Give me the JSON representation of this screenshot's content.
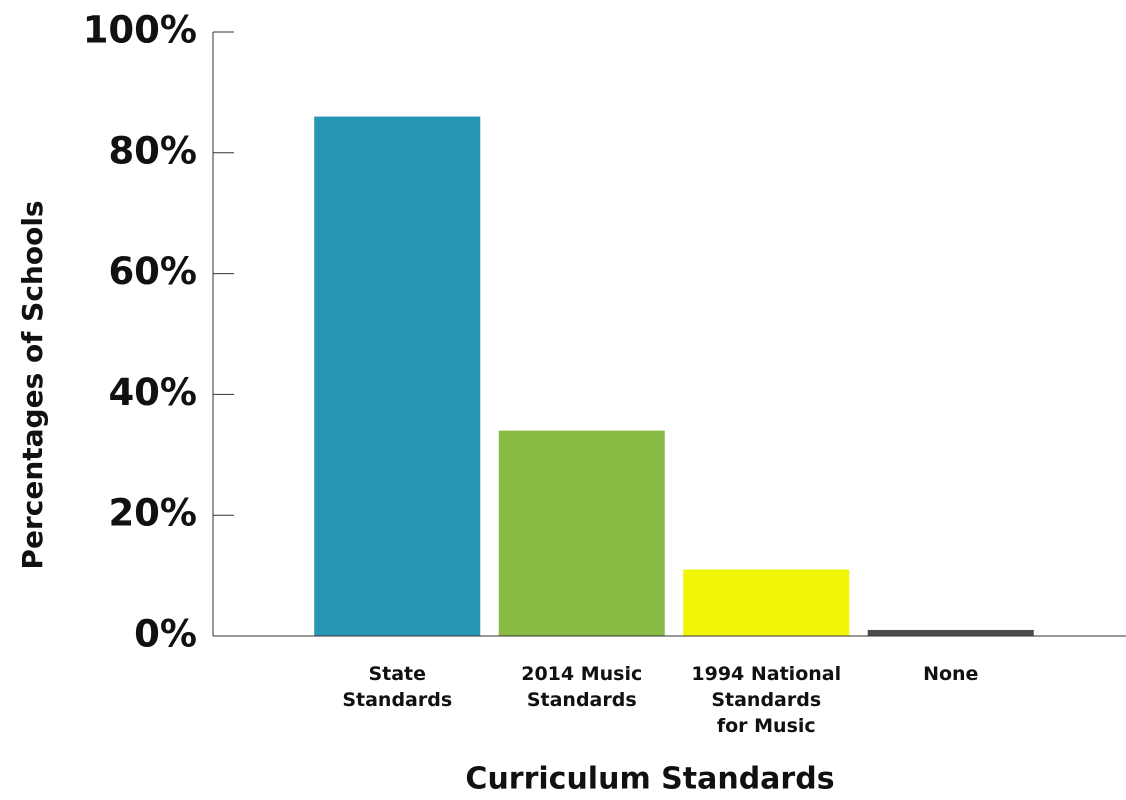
{
  "chart_data": {
    "type": "bar",
    "x_label": "Curriculum Standards",
    "y_label": "Percentages of Schools",
    "categories": [
      "State\nStandards",
      "2014 Music\nStandards",
      "1994 National\nStandards\nfor Music",
      "None"
    ],
    "values": [
      86,
      34,
      11,
      1
    ],
    "colors": [
      "#2795b4",
      "#89bb44",
      "#f2f505",
      "#4d4d4d"
    ],
    "ylim": [
      0,
      100
    ],
    "yticks": [
      {
        "value": 0,
        "label": "0%"
      },
      {
        "value": 20,
        "label": "20%"
      },
      {
        "value": 40,
        "label": "40%"
      },
      {
        "value": 60,
        "label": "60%"
      },
      {
        "value": 80,
        "label": "80%"
      },
      {
        "value": 100,
        "label": "100%"
      }
    ]
  }
}
